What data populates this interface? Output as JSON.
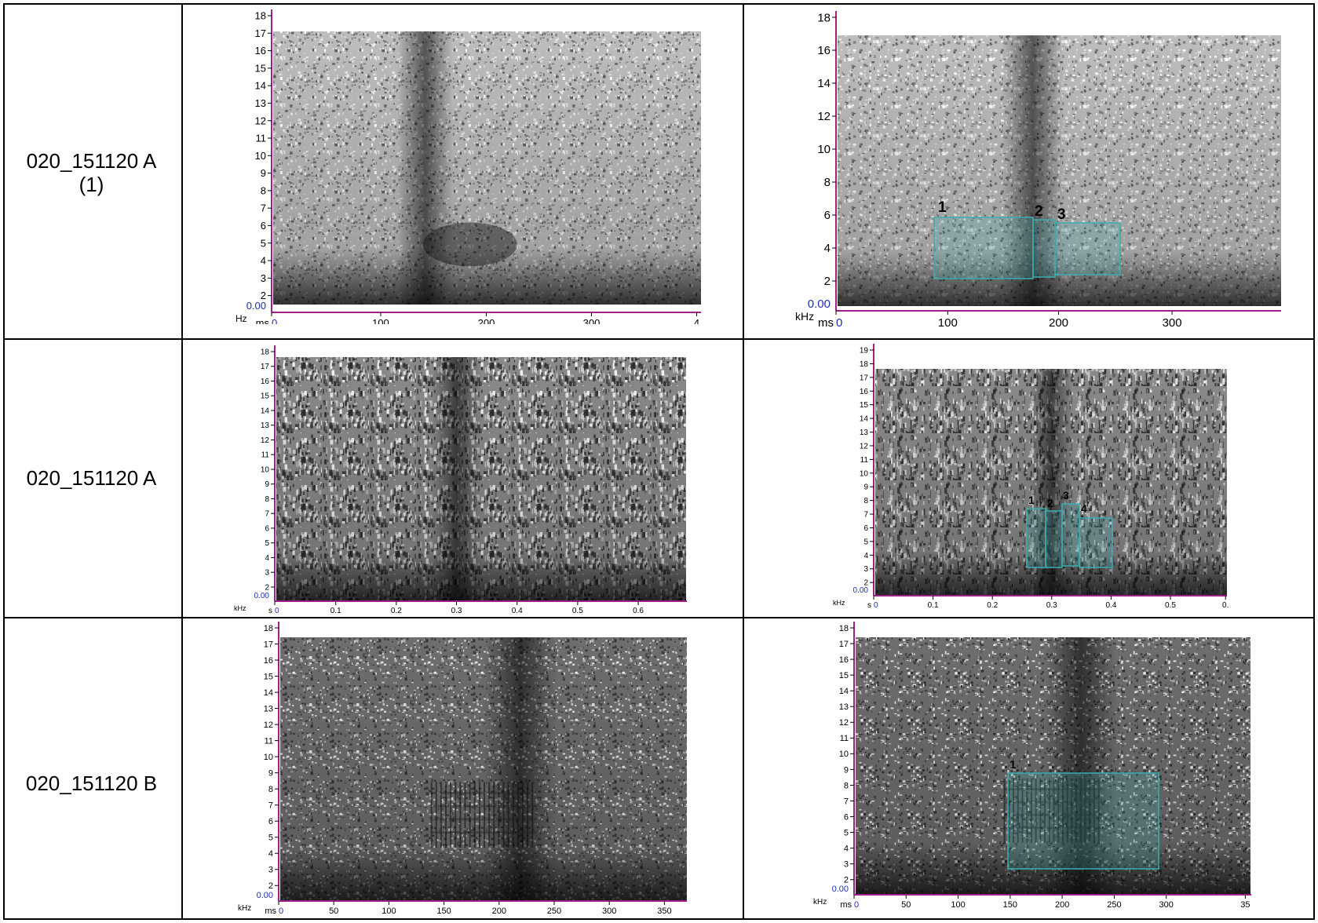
{
  "rows": [
    {
      "id": "020_151120 A (1)",
      "label_lines": [
        "020_151120 A",
        "(1)"
      ],
      "plain": {
        "y_tick_labels": [
          "18",
          "17",
          "16",
          "15",
          "14",
          "13",
          "12",
          "11",
          "10",
          "9",
          "8",
          "7",
          "6",
          "5",
          "4",
          "3",
          "2"
        ],
        "y_zero_label": "0.00",
        "y_unit": "kHz",
        "x_unit": "ms",
        "x_tick_labels": [
          "0",
          "100",
          "200",
          "300",
          "4"
        ]
      },
      "annotated": {
        "y_tick_labels": [
          "18",
          "16",
          "14",
          "12",
          "10",
          "8",
          "6",
          "4",
          "2"
        ],
        "y_zero_label": "0.00",
        "y_unit": "kHz",
        "x_unit": "ms",
        "x_tick_labels": [
          "0",
          "100",
          "200",
          "300"
        ],
        "box_labels": [
          "1",
          "2",
          "3"
        ]
      }
    },
    {
      "id": "020_151120 A",
      "label_lines": [
        "020_151120 A"
      ],
      "plain": {
        "y_tick_labels": [
          "18",
          "17",
          "16",
          "15",
          "14",
          "13",
          "12",
          "11",
          "10",
          "9",
          "8",
          "7",
          "6",
          "5",
          "4",
          "3",
          "2"
        ],
        "y_zero_label": "0.00",
        "y_unit": "kHz",
        "x_unit": "s",
        "x_tick_labels": [
          "0",
          "0.1",
          "0.2",
          "0.3",
          "0.4",
          "0.5",
          "0.6"
        ]
      },
      "annotated": {
        "y_tick_labels": [
          "19",
          "18",
          "17",
          "16",
          "15",
          "14",
          "13",
          "12",
          "11",
          "10",
          "9",
          "8",
          "7",
          "6",
          "5",
          "4",
          "3",
          "2"
        ],
        "y_zero_label": "0.00",
        "y_unit": "kHz",
        "x_unit": "s",
        "x_tick_labels": [
          "0",
          "0.1",
          "0.2",
          "0.3",
          "0.4",
          "0.5",
          "0."
        ],
        "box_labels": [
          "1",
          "2",
          "3",
          "4"
        ]
      }
    },
    {
      "id": "020_151120 B",
      "label_lines": [
        "020_151120 B"
      ],
      "plain": {
        "y_tick_labels": [
          "18",
          "17",
          "16",
          "15",
          "14",
          "13",
          "12",
          "11",
          "10",
          "9",
          "8",
          "7",
          "6",
          "5",
          "4",
          "3",
          "2"
        ],
        "y_zero_label": "0.00",
        "y_unit": "kHz",
        "x_unit": "ms",
        "x_tick_labels": [
          "0",
          "50",
          "100",
          "150",
          "200",
          "250",
          "300",
          "350"
        ]
      },
      "annotated": {
        "y_tick_labels": [
          "18",
          "17",
          "16",
          "15",
          "14",
          "13",
          "12",
          "11",
          "10",
          "9",
          "8",
          "7",
          "6",
          "5",
          "4",
          "3",
          "2"
        ],
        "y_zero_label": "0.00",
        "y_unit": "kHz",
        "x_unit": "ms",
        "x_tick_labels": [
          "0",
          "50",
          "100",
          "150",
          "200",
          "250",
          "300",
          "35"
        ],
        "box_labels": [
          "1"
        ]
      }
    }
  ],
  "colors": {
    "axis": "#a0208a",
    "label_blue": "#2030b0",
    "box_stroke": "#3aaeb0",
    "box_fill": "#3aaeb0",
    "grid": "#000000"
  }
}
